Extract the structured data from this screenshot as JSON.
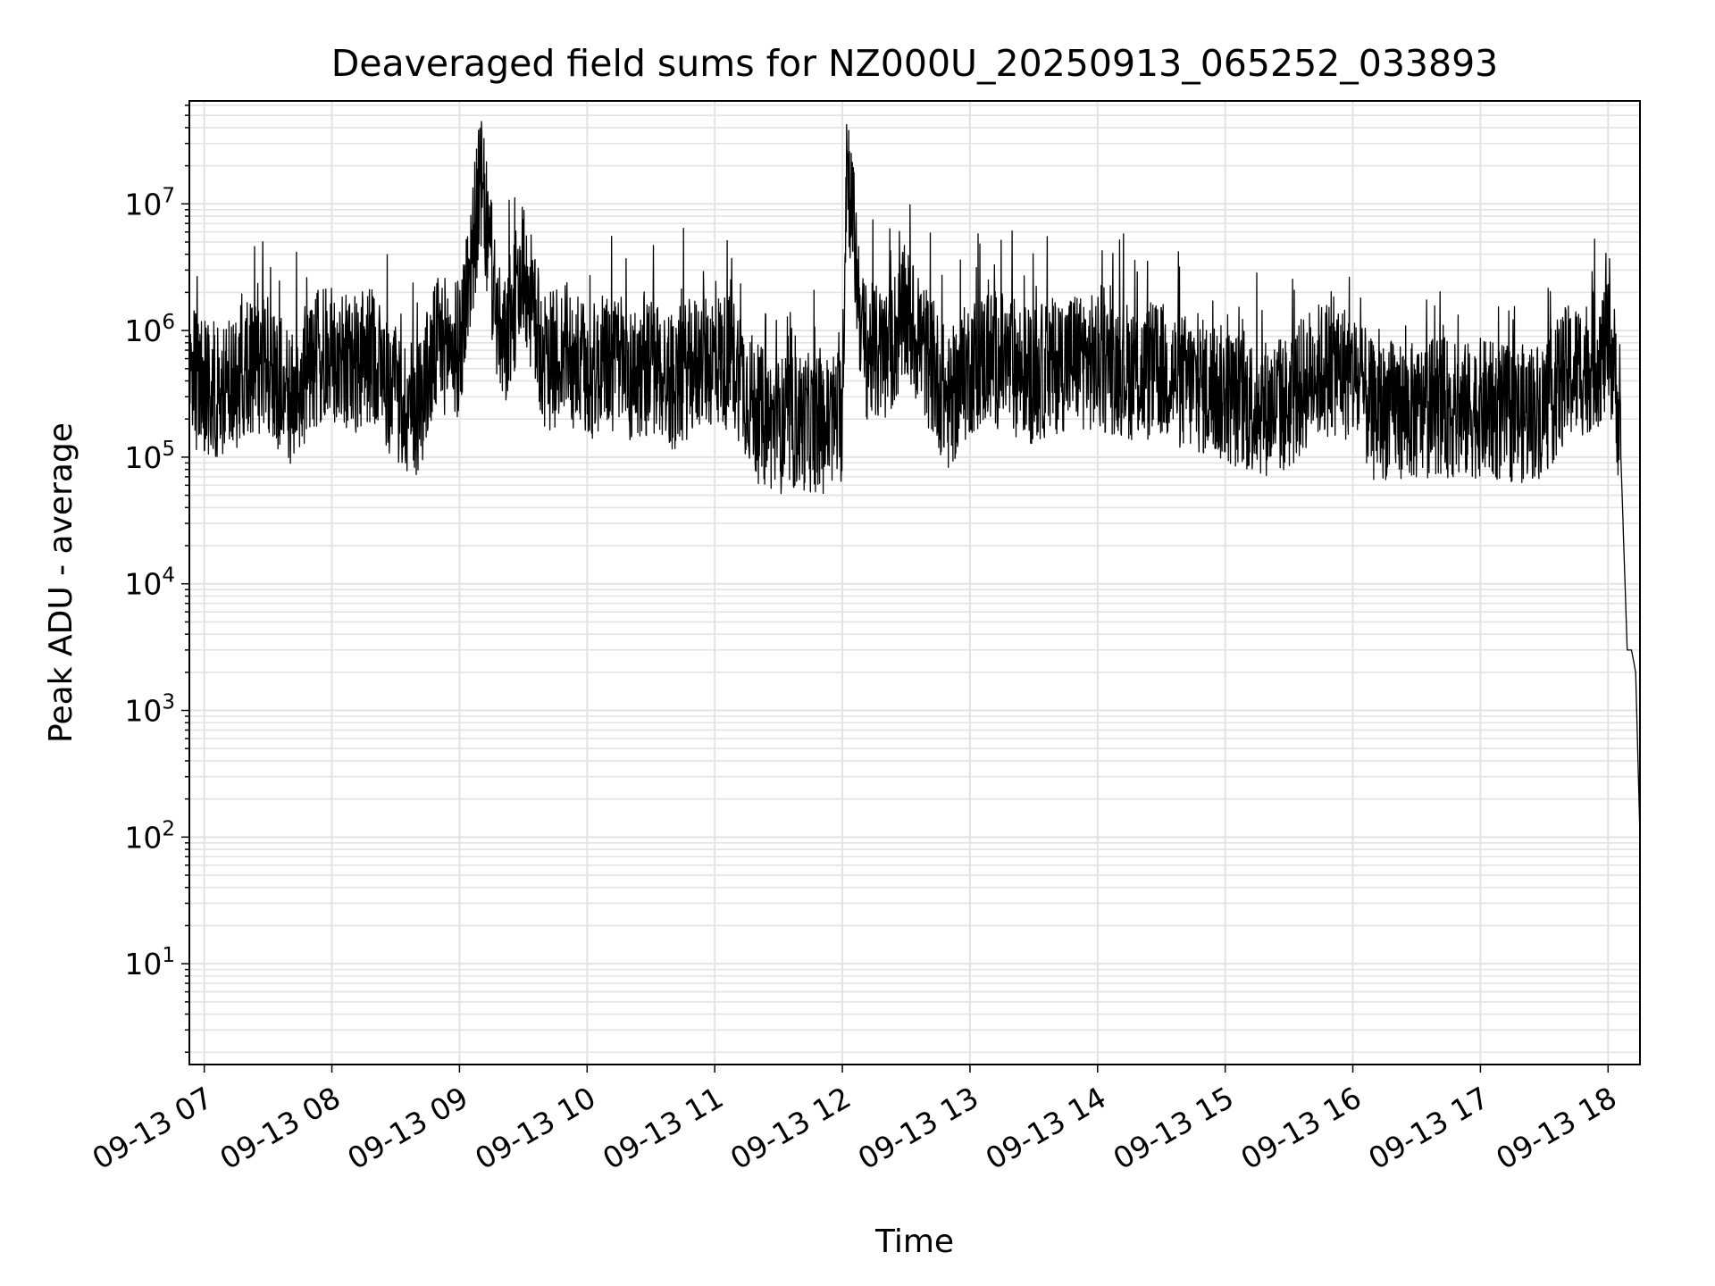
{
  "chart_data": {
    "type": "line",
    "title": "Deaveraged field sums for NZ000U_20250913_065252_033893",
    "xlabel": "Time",
    "ylabel": "Peak ADU - average",
    "yscale": "log",
    "ylim": [
      1.6,
      65000000
    ],
    "xlim": [
      "2025-09-13 06:53",
      "2025-09-13 18:15"
    ],
    "grid": true,
    "x_ticks": [
      {
        "label": "09-13 07",
        "value": "2025-09-13 07:00"
      },
      {
        "label": "09-13 08",
        "value": "2025-09-13 08:00"
      },
      {
        "label": "09-13 09",
        "value": "2025-09-13 09:00"
      },
      {
        "label": "09-13 10",
        "value": "2025-09-13 10:00"
      },
      {
        "label": "09-13 11",
        "value": "2025-09-13 11:00"
      },
      {
        "label": "09-13 12",
        "value": "2025-09-13 12:00"
      },
      {
        "label": "09-13 13",
        "value": "2025-09-13 13:00"
      },
      {
        "label": "09-13 14",
        "value": "2025-09-13 14:00"
      },
      {
        "label": "09-13 15",
        "value": "2025-09-13 15:00"
      },
      {
        "label": "09-13 16",
        "value": "2025-09-13 16:00"
      },
      {
        "label": "09-13 17",
        "value": "2025-09-13 17:00"
      },
      {
        "label": "09-13 18",
        "value": "2025-09-13 18:00"
      }
    ],
    "y_ticks": [
      {
        "base": "10",
        "exp": "1",
        "value": 10
      },
      {
        "base": "10",
        "exp": "2",
        "value": 100
      },
      {
        "base": "10",
        "exp": "3",
        "value": 1000
      },
      {
        "base": "10",
        "exp": "4",
        "value": 10000
      },
      {
        "base": "10",
        "exp": "5",
        "value": 100000
      },
      {
        "base": "10",
        "exp": "6",
        "value": 1000000
      },
      {
        "base": "10",
        "exp": "7",
        "value": 10000000
      }
    ],
    "series": [
      {
        "color": "#000000",
        "points": [
          [
            "2025-09-13 06:53",
            500000
          ],
          [
            "2025-09-13 07:00",
            400000
          ],
          [
            "2025-09-13 07:10",
            350000
          ],
          [
            "2025-09-13 07:20",
            600000
          ],
          [
            "2025-09-13 07:30",
            550000
          ],
          [
            "2025-09-13 07:40",
            300000
          ],
          [
            "2025-09-13 07:50",
            650000
          ],
          [
            "2025-09-13 08:00",
            700000
          ],
          [
            "2025-09-13 08:10",
            600000
          ],
          [
            "2025-09-13 08:20",
            750000
          ],
          [
            "2025-09-13 08:30",
            300000
          ],
          [
            "2025-09-13 08:40",
            280000
          ],
          [
            "2025-09-13 08:50",
            900000
          ],
          [
            "2025-09-13 09:00",
            800000
          ],
          [
            "2025-09-13 09:10",
            17000000
          ],
          [
            "2025-09-13 09:20",
            700000
          ],
          [
            "2025-09-13 09:30",
            3500000
          ],
          [
            "2025-09-13 09:40",
            600000
          ],
          [
            "2025-09-13 09:50",
            800000
          ],
          [
            "2025-09-13 10:00",
            500000
          ],
          [
            "2025-09-13 10:10",
            650000
          ],
          [
            "2025-09-13 10:20",
            500000
          ],
          [
            "2025-09-13 10:30",
            600000
          ],
          [
            "2025-09-13 10:40",
            450000
          ],
          [
            "2025-09-13 10:50",
            600000
          ],
          [
            "2025-09-13 11:00",
            700000
          ],
          [
            "2025-09-13 11:10",
            600000
          ],
          [
            "2025-09-13 11:20",
            250000
          ],
          [
            "2025-09-13 11:30",
            200000
          ],
          [
            "2025-09-13 11:40",
            220000
          ],
          [
            "2025-09-13 11:50",
            200000
          ],
          [
            "2025-09-13 12:00",
            250000
          ],
          [
            "2025-09-13 12:02",
            29000000
          ],
          [
            "2025-09-13 12:10",
            800000
          ],
          [
            "2025-09-13 12:20",
            700000
          ],
          [
            "2025-09-13 12:30",
            1500000
          ],
          [
            "2025-09-13 12:40",
            700000
          ],
          [
            "2025-09-13 12:50",
            300000
          ],
          [
            "2025-09-13 13:00",
            600000
          ],
          [
            "2025-09-13 13:10",
            700000
          ],
          [
            "2025-09-13 13:20",
            600000
          ],
          [
            "2025-09-13 13:30",
            500000
          ],
          [
            "2025-09-13 13:40",
            600000
          ],
          [
            "2025-09-13 13:50",
            700000
          ],
          [
            "2025-09-13 14:00",
            600000
          ],
          [
            "2025-09-13 14:10",
            600000
          ],
          [
            "2025-09-13 14:20",
            500000
          ],
          [
            "2025-09-13 14:30",
            550000
          ],
          [
            "2025-09-13 14:40",
            450000
          ],
          [
            "2025-09-13 14:50",
            400000
          ],
          [
            "2025-09-13 15:00",
            350000
          ],
          [
            "2025-09-13 15:10",
            300000
          ],
          [
            "2025-09-13 15:20",
            280000
          ],
          [
            "2025-09-13 15:30",
            300000
          ],
          [
            "2025-09-13 15:40",
            500000
          ],
          [
            "2025-09-13 15:50",
            600000
          ],
          [
            "2025-09-13 16:00",
            500000
          ],
          [
            "2025-09-13 16:10",
            250000
          ],
          [
            "2025-09-13 16:20",
            280000
          ],
          [
            "2025-09-13 16:30",
            250000
          ],
          [
            "2025-09-13 16:40",
            300000
          ],
          [
            "2025-09-13 16:50",
            250000
          ],
          [
            "2025-09-13 17:00",
            280000
          ],
          [
            "2025-09-13 17:10",
            250000
          ],
          [
            "2025-09-13 17:20",
            250000
          ],
          [
            "2025-09-13 17:30",
            280000
          ],
          [
            "2025-09-13 17:40",
            500000
          ],
          [
            "2025-09-13 17:50",
            600000
          ],
          [
            "2025-09-13 18:00",
            800000
          ],
          [
            "2025-09-13 18:02",
            700000
          ],
          [
            "2025-09-13 18:04",
            400000
          ],
          [
            "2025-09-13 18:06",
            100000
          ],
          [
            "2025-09-13 18:08",
            10000
          ],
          [
            "2025-09-13 18:09",
            3000
          ],
          [
            "2025-09-13 18:11",
            3000
          ],
          [
            "2025-09-13 18:13",
            2000
          ],
          [
            "2025-09-13 18:15",
            100
          ]
        ]
      }
    ]
  }
}
